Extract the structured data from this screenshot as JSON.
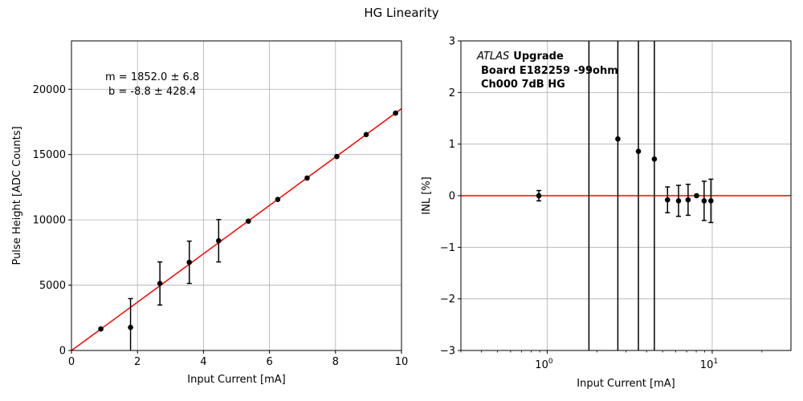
{
  "figure": {
    "title": "HG Linearity"
  },
  "chart_data": [
    {
      "type": "scatter",
      "xlabel": "Input Current [mA]",
      "ylabel": "Pulse Height [ADC Counts]",
      "xlim": [
        0,
        10
      ],
      "ylim": [
        0,
        23700
      ],
      "xticks": [
        "0",
        "2",
        "4",
        "6",
        "8",
        "10"
      ],
      "yticks": [
        "0",
        "5000",
        "10000",
        "15000",
        "20000"
      ],
      "grid": true,
      "points": [
        {
          "x": 0.89,
          "y": 1650,
          "err": 0
        },
        {
          "x": 1.79,
          "y": 1770,
          "err": 2200
        },
        {
          "x": 2.68,
          "y": 5130,
          "err": 1650
        },
        {
          "x": 3.57,
          "y": 6750,
          "err": 1620
        },
        {
          "x": 4.46,
          "y": 8400,
          "err": 1620
        },
        {
          "x": 5.36,
          "y": 9900,
          "err": 0
        },
        {
          "x": 6.25,
          "y": 11560,
          "err": 0
        },
        {
          "x": 7.14,
          "y": 13200,
          "err": 0
        },
        {
          "x": 8.04,
          "y": 14850,
          "err": 0
        },
        {
          "x": 8.93,
          "y": 16530,
          "err": 0
        },
        {
          "x": 9.82,
          "y": 18170,
          "err": 0
        }
      ],
      "fit": {
        "slope": 1852.0,
        "intercept": -8.8,
        "color": "#ff0000"
      },
      "annotation": [
        "m = 1852.0 ± 6.8",
        "b = -8.8 ± 428.4"
      ],
      "marker_color": "#000000"
    },
    {
      "type": "scatter",
      "xscale": "log",
      "xlabel": "Input Current [mA]",
      "ylabel": "INL [%]",
      "xlim": [
        0.3,
        30
      ],
      "ylim": [
        -3,
        3
      ],
      "xticks": [
        {
          "value": 1,
          "base": "10",
          "exp": "0"
        },
        {
          "value": 10,
          "base": "10",
          "exp": "1"
        }
      ],
      "yticks": [
        "−3",
        "−2",
        "−1",
        "0",
        "1",
        "2",
        "3"
      ],
      "grid": true,
      "points": [
        {
          "x": 0.89,
          "y": 0.0,
          "err": 0.1
        },
        {
          "x": 2.68,
          "y": 1.1,
          "err": 10
        },
        {
          "x": 3.57,
          "y": 0.86,
          "err": 10
        },
        {
          "x": 4.46,
          "y": 0.71,
          "err": 10
        },
        {
          "x": 5.36,
          "y": -0.08,
          "err": 0.25
        },
        {
          "x": 6.25,
          "y": -0.1,
          "err": 0.3
        },
        {
          "x": 7.14,
          "y": -0.08,
          "err": 0.3
        },
        {
          "x": 8.04,
          "y": 0.0,
          "err": 0
        },
        {
          "x": 8.93,
          "y": -0.1,
          "err": 0.38
        },
        {
          "x": 9.82,
          "y": -0.1,
          "err": 0.42
        }
      ],
      "vlines": [
        1.79
      ],
      "hline": {
        "y": 0,
        "color": "#ff0000"
      },
      "annotation": {
        "atlas": "ATLAS",
        "upgrade": "Upgrade",
        "line2": "Board E182259 -99ohm",
        "line3": "Ch000 7dB HG"
      },
      "marker_color": "#000000"
    }
  ]
}
